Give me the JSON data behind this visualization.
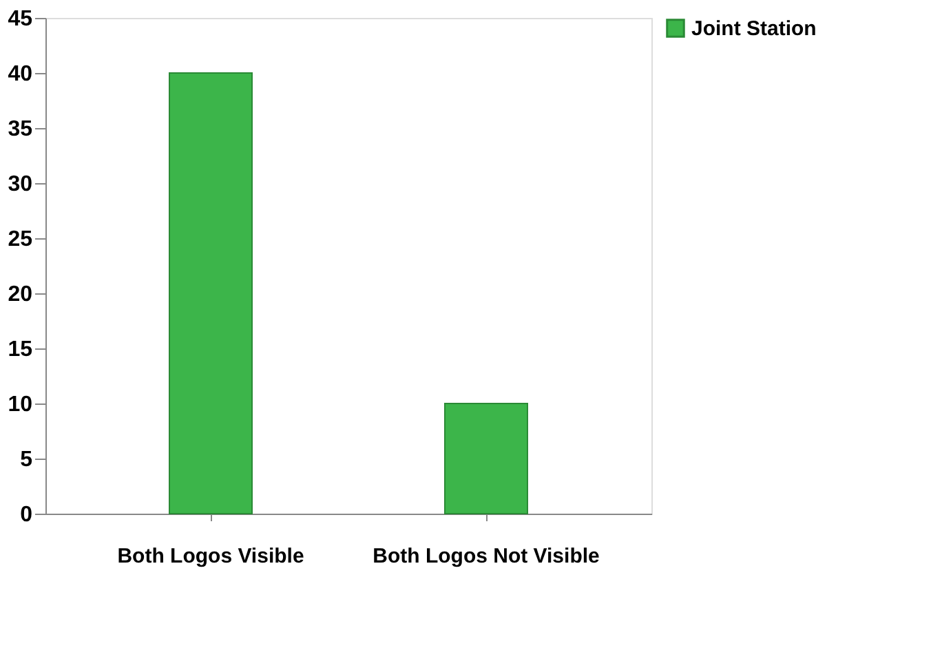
{
  "chart_data": {
    "type": "bar",
    "categories": [
      "Both Logos Visible",
      "Both Logos Not Visible"
    ],
    "series": [
      {
        "name": "Joint Station",
        "color": "#3cb54a",
        "values": [
          40,
          10
        ]
      }
    ],
    "ylim": [
      0,
      45
    ],
    "yticks": [
      0,
      5,
      10,
      15,
      20,
      25,
      30,
      35,
      40,
      45
    ],
    "grid": false,
    "legend": "right"
  }
}
